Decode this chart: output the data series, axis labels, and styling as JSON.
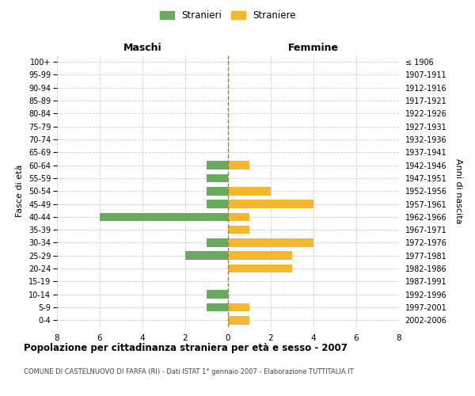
{
  "age_groups": [
    "100+",
    "95-99",
    "90-94",
    "85-89",
    "80-84",
    "75-79",
    "70-74",
    "65-69",
    "60-64",
    "55-59",
    "50-54",
    "45-49",
    "40-44",
    "35-39",
    "30-34",
    "25-29",
    "20-24",
    "15-19",
    "10-14",
    "5-9",
    "0-4"
  ],
  "birth_years": [
    "≤ 1906",
    "1907-1911",
    "1912-1916",
    "1917-1921",
    "1922-1926",
    "1927-1931",
    "1932-1936",
    "1937-1941",
    "1942-1946",
    "1947-1951",
    "1952-1956",
    "1957-1961",
    "1962-1966",
    "1967-1971",
    "1972-1976",
    "1977-1981",
    "1982-1986",
    "1987-1991",
    "1992-1996",
    "1997-2001",
    "2002-2006"
  ],
  "males": [
    0,
    0,
    0,
    0,
    0,
    0,
    0,
    0,
    1,
    1,
    1,
    1,
    6,
    0,
    1,
    2,
    0,
    0,
    1,
    1,
    0
  ],
  "females": [
    0,
    0,
    0,
    0,
    0,
    0,
    0,
    0,
    1,
    0,
    2,
    4,
    1,
    1,
    4,
    3,
    3,
    0,
    0,
    1,
    1
  ],
  "male_color": "#6aaa5e",
  "female_color": "#f5b731",
  "title": "Popolazione per cittadinanza straniera per età e sesso - 2007",
  "subtitle": "COMUNE DI CASTELNUOVO DI FARFA (RI) - Dati ISTAT 1° gennaio 2007 - Elaborazione TUTTITALIA.IT",
  "xlabel_left": "Maschi",
  "xlabel_right": "Femmine",
  "ylabel_left": "Fasce di età",
  "ylabel_right": "Anni di nascita",
  "legend_male": "Stranieri",
  "legend_female": "Straniere",
  "xlim": 8,
  "background_color": "#ffffff",
  "grid_color": "#cccccc"
}
